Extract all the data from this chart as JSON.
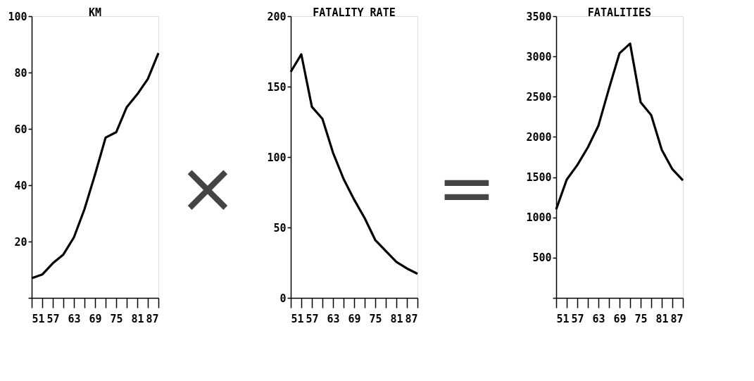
{
  "chart_data": [
    {
      "type": "line",
      "title": "KM",
      "x": [
        51,
        54,
        57,
        60,
        63,
        66,
        69,
        72,
        75,
        78,
        81,
        84,
        87
      ],
      "series": [
        {
          "color": "#000000",
          "values": [
            7,
            8.3,
            12.3,
            15.4,
            21.5,
            31.5,
            43.8,
            56.9,
            58.8,
            67.7,
            72.3,
            77.7,
            86.9
          ]
        }
      ],
      "xlim": [
        51,
        87
      ],
      "xticks": [
        51,
        {
          "value": 54,
          "label": null
        },
        57,
        {
          "value": 60,
          "label": null
        },
        63,
        {
          "value": 66,
          "label": null
        },
        69,
        {
          "value": 72,
          "label": null
        },
        75,
        {
          "value": 78,
          "label": null
        },
        81,
        {
          "value": 84,
          "label": null
        },
        87
      ],
      "ylim": [
        0,
        100
      ],
      "yticks": [
        {
          "value": 0,
          "label": null
        },
        20,
        40,
        60,
        80,
        100
      ],
      "grid": false,
      "marker": "none",
      "line_style": "solid",
      "annotations": [
        "×"
      ]
    },
    {
      "type": "line",
      "title": "FATALITY RATE",
      "x": [
        51,
        54,
        57,
        60,
        63,
        66,
        69,
        72,
        75,
        78,
        81,
        84,
        87
      ],
      "series": [
        {
          "color": "#000000",
          "values": [
            160.5,
            172.9,
            135.7,
            127.1,
            103.1,
            84.5,
            69.8,
            56.6,
            41.1,
            33.3,
            25.6,
            20.9,
            17.1
          ]
        }
      ],
      "xlim": [
        51,
        87
      ],
      "xticks": [
        51,
        {
          "value": 54,
          "label": null
        },
        57,
        {
          "value": 60,
          "label": null
        },
        63,
        {
          "value": 66,
          "label": null
        },
        69,
        {
          "value": 72,
          "label": null
        },
        75,
        {
          "value": 78,
          "label": null
        },
        81,
        {
          "value": 84,
          "label": null
        },
        87
      ],
      "ylim": [
        0,
        200
      ],
      "yticks": [
        0,
        50,
        100,
        150,
        200
      ],
      "grid": false,
      "marker": "none",
      "line_style": "solid",
      "annotations": [
        "="
      ]
    },
    {
      "type": "line",
      "title": "FATALITIES",
      "x": [
        51,
        54,
        57,
        60,
        63,
        66,
        69,
        72,
        75,
        78,
        81,
        84,
        87
      ],
      "series": [
        {
          "color": "#000000",
          "values": [
            1100,
            1470,
            1650,
            1870,
            2140,
            2600,
            3040,
            3160,
            2430,
            2270,
            1840,
            1600,
            1460
          ]
        }
      ],
      "xlim": [
        51,
        87
      ],
      "xticks": [
        51,
        {
          "value": 54,
          "label": null
        },
        57,
        {
          "value": 60,
          "label": null
        },
        63,
        {
          "value": 66,
          "label": null
        },
        69,
        {
          "value": 72,
          "label": null
        },
        75,
        {
          "value": 78,
          "label": null
        },
        81,
        {
          "value": 84,
          "label": null
        },
        87
      ],
      "ylim": [
        0,
        3500
      ],
      "yticks": [
        {
          "value": 0,
          "label": null
        },
        500,
        1000,
        1500,
        2000,
        2500,
        3000,
        3500
      ],
      "grid": false,
      "marker": "none",
      "line_style": "solid"
    }
  ]
}
